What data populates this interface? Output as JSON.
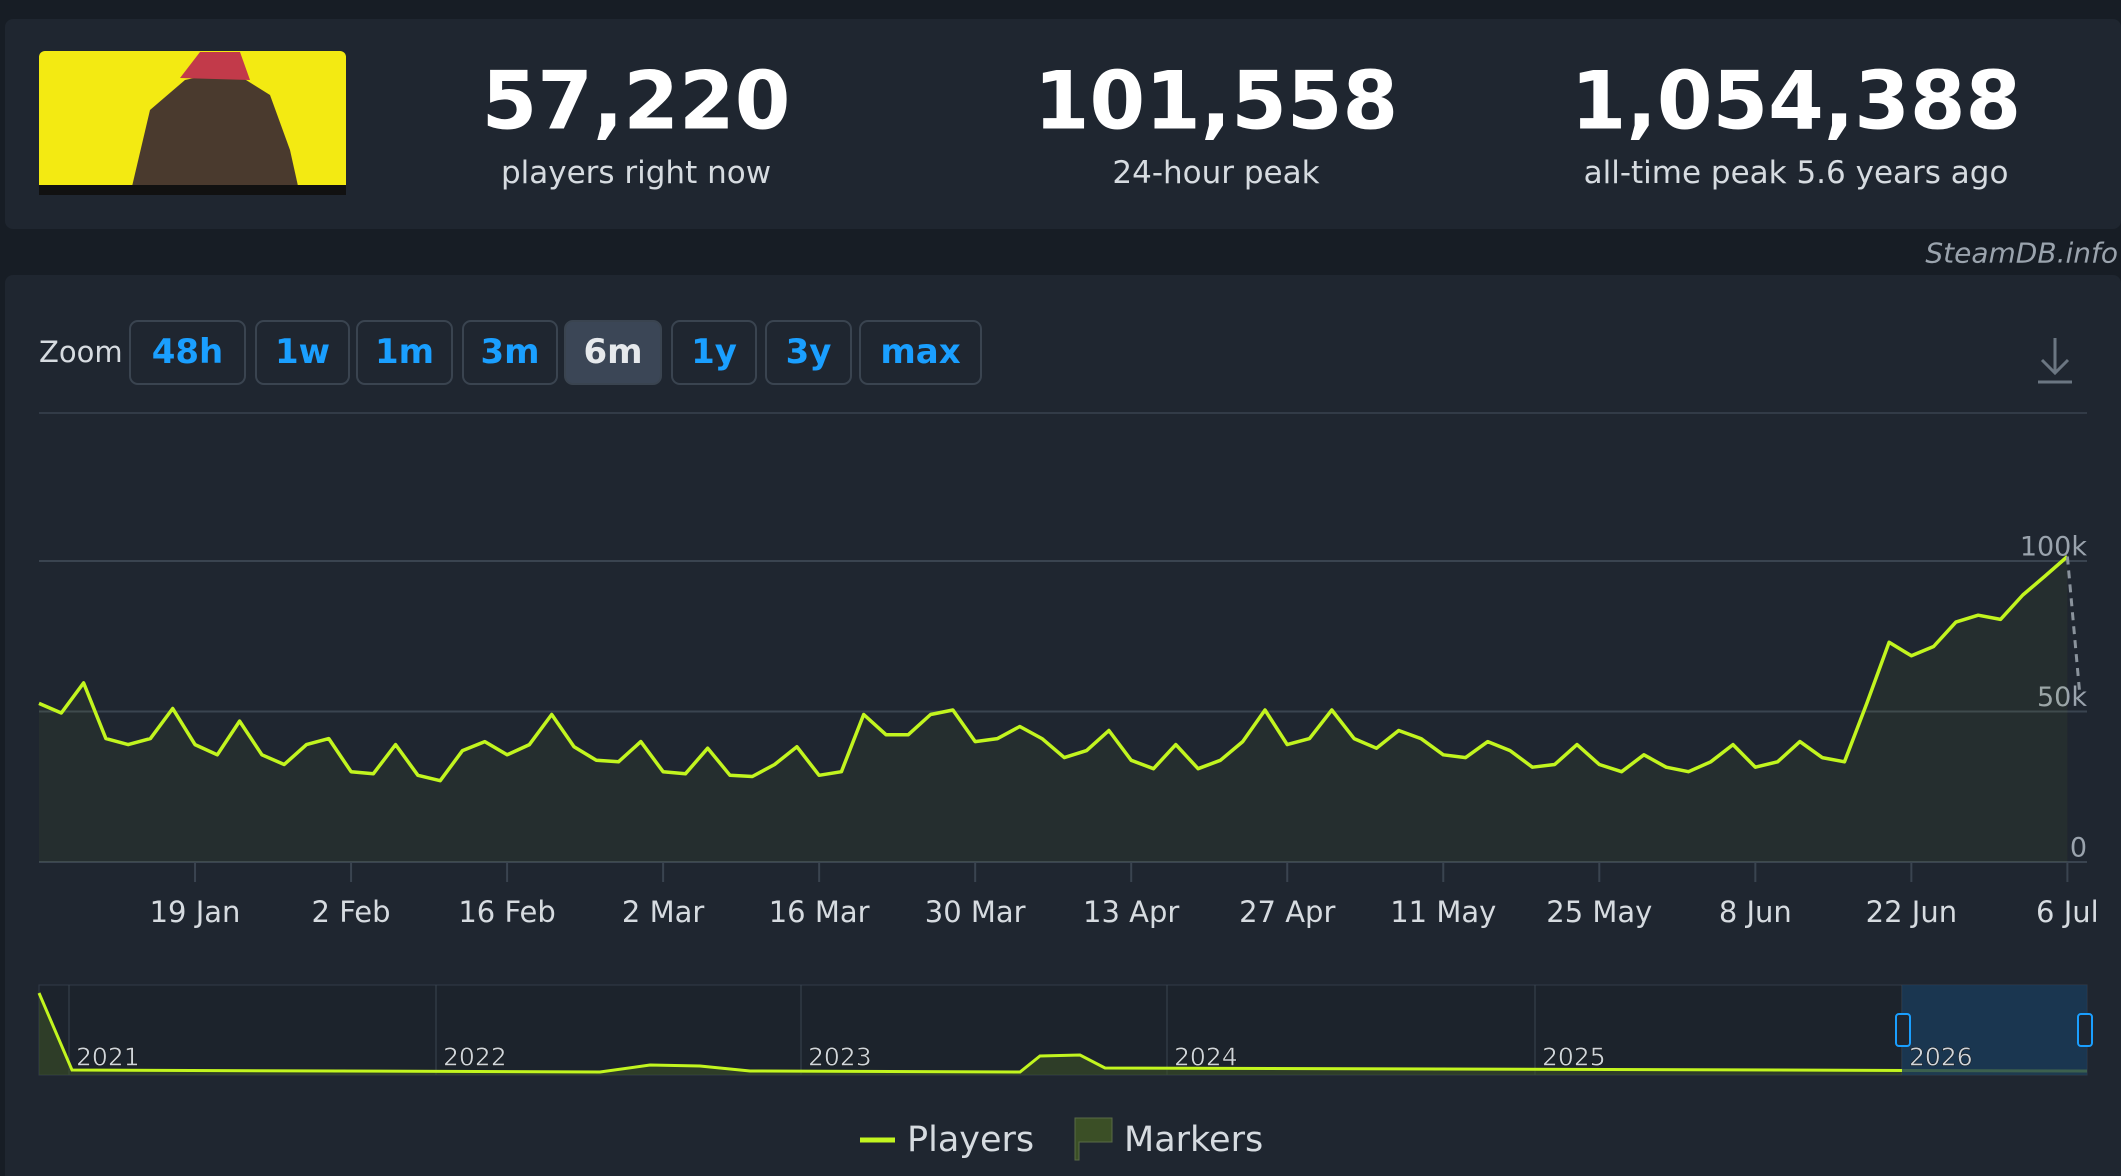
{
  "header": {
    "stats": [
      {
        "value": 57220,
        "label": "57,220",
        "caption": "players right now"
      },
      {
        "value": 101558,
        "label": "101,558",
        "caption": "24-hour peak"
      },
      {
        "value": 1054388,
        "label": "1,054,388",
        "caption": "all-time peak 5.6 years ago"
      }
    ],
    "source": "SteamDB.info"
  },
  "zoom": {
    "label": "Zoom",
    "options": [
      "48h",
      "1w",
      "1m",
      "3m",
      "6m",
      "1y",
      "3y",
      "max"
    ],
    "active": "6m"
  },
  "chart_data": {
    "type": "line",
    "categories": [
      null,
      null,
      null,
      null,
      null,
      null,
      null,
      "19 Jan",
      null,
      null,
      null,
      null,
      null,
      null,
      "2 Feb",
      null,
      null,
      null,
      null,
      null,
      null,
      "16 Feb",
      null,
      null,
      null,
      null,
      null,
      null,
      "2 Mar",
      null,
      null,
      null,
      null,
      null,
      null,
      "16 Mar",
      null,
      null,
      null,
      null,
      null,
      null,
      "30 Mar",
      null,
      null,
      null,
      null,
      null,
      null,
      "13 Apr",
      null,
      null,
      null,
      null,
      null,
      null,
      "27 Apr",
      null,
      null,
      null,
      null,
      null,
      null,
      "11 May",
      null,
      null,
      null,
      null,
      null,
      null,
      "25 May",
      null,
      null,
      null,
      null,
      null,
      null,
      "8 Jun",
      null,
      null,
      null,
      null,
      null,
      null,
      "22 Jun",
      null,
      null,
      null,
      null,
      null,
      null,
      "6 Jul"
    ],
    "series": [
      {
        "name": "Players",
        "color": "#c2f51f",
        "values": [
          52700,
          49500,
          59500,
          41000,
          39000,
          41000,
          51000,
          39000,
          35600,
          46800,
          35600,
          32400,
          39000,
          41000,
          30000,
          29300,
          39000,
          28800,
          27000,
          37000,
          40000,
          35600,
          39000,
          49000,
          38300,
          33800,
          33300,
          40000,
          30000,
          29300,
          37800,
          28800,
          28400,
          32400,
          38300,
          28800,
          30000,
          49000,
          42300,
          42300,
          49000,
          50500,
          40000,
          41000,
          45000,
          41000,
          34700,
          37000,
          43700,
          33800,
          31000,
          39000,
          31000,
          33800,
          40000,
          50500,
          39000,
          41000,
          50500,
          41000,
          37800,
          43700,
          41000,
          35600,
          34700,
          40000,
          37000,
          31500,
          32400,
          39000,
          32400,
          30000,
          35600,
          31500,
          30000,
          33300,
          39000,
          31500,
          33300,
          40000,
          34700,
          33300,
          52700,
          73000,
          68500,
          71600,
          79700,
          82000,
          80600,
          88700,
          95000,
          101500
        ]
      }
    ],
    "markers": {
      "name": "Markers",
      "color": "#3b4f26"
    },
    "ylim": [
      0,
      150000
    ],
    "yticks": [
      0,
      {
        "value": 50000,
        "label": "50k"
      },
      {
        "value": 100000,
        "label": "100k"
      }
    ],
    "grid": true
  },
  "navigator": {
    "labels": [
      "2021",
      "2022",
      "2023",
      "2024",
      "2025",
      "2026"
    ]
  }
}
